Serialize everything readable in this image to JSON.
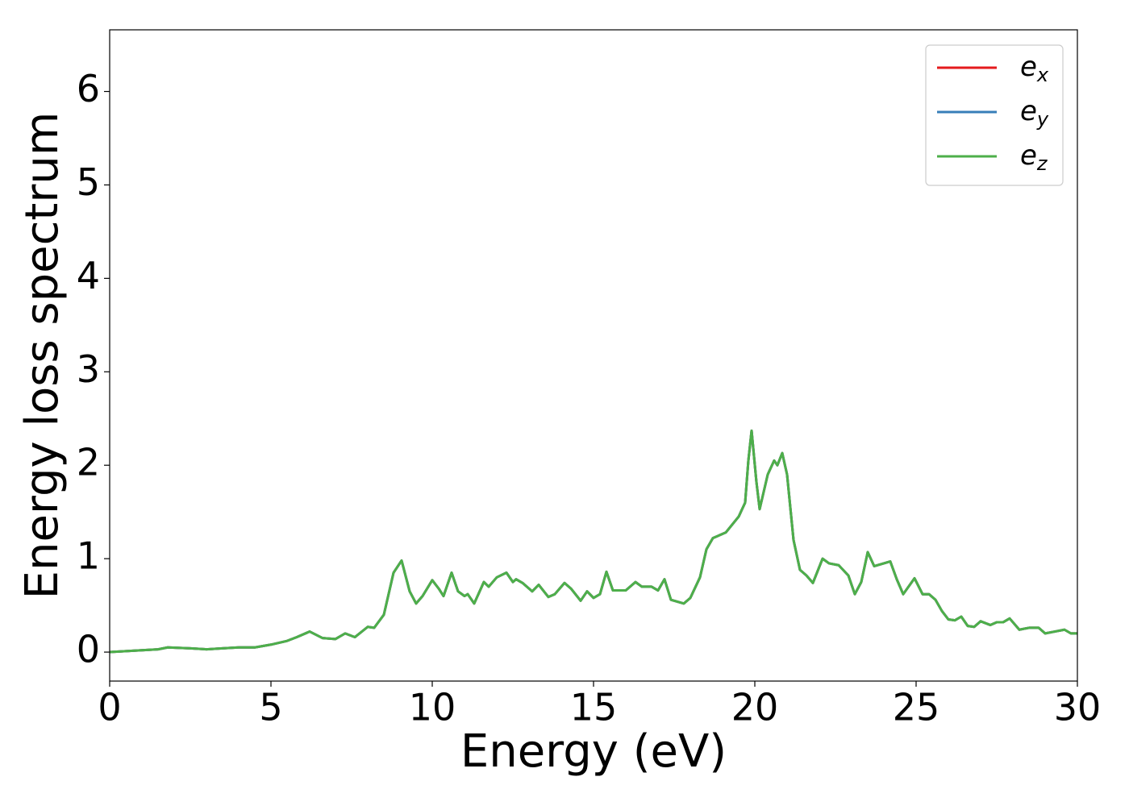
{
  "chart_data": {
    "type": "line",
    "x_label": "Energy (eV)",
    "y_label": "Energy loss spectrum",
    "xlim": [
      0,
      30
    ],
    "ylim": [
      -0.31,
      6.66
    ],
    "xticks": [
      0,
      5,
      10,
      15,
      20,
      25,
      30
    ],
    "yticks": [
      0,
      1,
      2,
      3,
      4,
      5,
      6
    ],
    "legend": "upper right",
    "x": [
      0,
      0.5,
      1,
      1.5,
      1.8,
      2.5,
      3,
      3.5,
      4,
      4.5,
      5,
      5.5,
      5.8,
      6.2,
      6.6,
      7,
      7.3,
      7.6,
      8,
      8.2,
      8.5,
      8.8,
      9.05,
      9.3,
      9.5,
      9.7,
      10,
      10.2,
      10.35,
      10.6,
      10.8,
      11,
      11.1,
      11.3,
      11.6,
      11.75,
      12,
      12.3,
      12.5,
      12.6,
      12.8,
      13.1,
      13.3,
      13.6,
      13.8,
      14.1,
      14.3,
      14.6,
      14.8,
      15,
      15.2,
      15.4,
      15.6,
      16,
      16.3,
      16.5,
      16.8,
      17,
      17.2,
      17.4,
      17.8,
      18,
      18.3,
      18.5,
      18.7,
      18.9,
      19.1,
      19.5,
      19.7,
      19.8,
      19.9,
      20.05,
      20.15,
      20.4,
      20.6,
      20.7,
      20.85,
      21,
      21.2,
      21.4,
      21.6,
      21.8,
      22.1,
      22.3,
      22.6,
      22.9,
      23.1,
      23.3,
      23.5,
      23.7,
      24,
      24.2,
      24.4,
      24.6,
      24.95,
      25.2,
      25.4,
      25.6,
      25.8,
      26,
      26.2,
      26.4,
      26.6,
      26.8,
      27,
      27.3,
      27.5,
      27.7,
      27.9,
      28.2,
      28.5,
      28.8,
      29,
      29.3,
      29.6,
      29.8,
      30
    ],
    "series": [
      {
        "name": "ex",
        "color": "#e41a1c",
        "values": [
          0,
          0.01,
          0.02,
          0.03,
          0.05,
          0.04,
          0.03,
          0.04,
          0.05,
          0.05,
          0.08,
          0.12,
          0.16,
          0.22,
          0.15,
          0.14,
          0.2,
          0.16,
          0.27,
          0.26,
          0.4,
          0.85,
          0.98,
          0.65,
          0.52,
          0.6,
          0.77,
          0.68,
          0.6,
          0.85,
          0.65,
          0.6,
          0.62,
          0.52,
          0.75,
          0.7,
          0.8,
          0.85,
          0.75,
          0.78,
          0.74,
          0.65,
          0.72,
          0.59,
          0.62,
          0.74,
          0.68,
          0.55,
          0.65,
          0.58,
          0.62,
          0.86,
          0.66,
          0.66,
          0.75,
          0.7,
          0.7,
          0.66,
          0.78,
          0.56,
          0.52,
          0.58,
          0.8,
          1.1,
          1.22,
          1.25,
          1.28,
          1.45,
          1.6,
          2.05,
          2.37,
          1.82,
          1.53,
          1.9,
          2.05,
          2.0,
          2.13,
          1.9,
          1.2,
          0.88,
          0.82,
          0.74,
          1.0,
          0.95,
          0.93,
          0.82,
          0.62,
          0.75,
          1.07,
          0.92,
          0.95,
          0.97,
          0.78,
          0.62,
          0.79,
          0.62,
          0.62,
          0.56,
          0.44,
          0.35,
          0.34,
          0.38,
          0.28,
          0.27,
          0.33,
          0.29,
          0.32,
          0.32,
          0.36,
          0.24,
          0.26,
          0.26,
          0.2,
          0.22,
          0.24,
          0.2,
          0.2
        ]
      },
      {
        "name": "ey",
        "color": "#377eb8",
        "values": [
          0,
          0.01,
          0.02,
          0.03,
          0.05,
          0.04,
          0.03,
          0.04,
          0.05,
          0.05,
          0.08,
          0.12,
          0.16,
          0.22,
          0.15,
          0.14,
          0.2,
          0.16,
          0.27,
          0.26,
          0.4,
          0.85,
          0.98,
          0.65,
          0.52,
          0.6,
          0.77,
          0.68,
          0.6,
          0.85,
          0.65,
          0.6,
          0.62,
          0.52,
          0.75,
          0.7,
          0.8,
          0.85,
          0.75,
          0.78,
          0.74,
          0.65,
          0.72,
          0.59,
          0.62,
          0.74,
          0.68,
          0.55,
          0.65,
          0.58,
          0.62,
          0.86,
          0.66,
          0.66,
          0.75,
          0.7,
          0.7,
          0.66,
          0.78,
          0.56,
          0.52,
          0.58,
          0.8,
          1.1,
          1.22,
          1.25,
          1.28,
          1.45,
          1.6,
          2.05,
          2.37,
          1.82,
          1.53,
          1.9,
          2.05,
          2.0,
          2.13,
          1.9,
          1.2,
          0.88,
          0.82,
          0.74,
          1.0,
          0.95,
          0.93,
          0.82,
          0.62,
          0.75,
          1.07,
          0.92,
          0.95,
          0.97,
          0.78,
          0.62,
          0.79,
          0.62,
          0.62,
          0.56,
          0.44,
          0.35,
          0.34,
          0.38,
          0.28,
          0.27,
          0.33,
          0.29,
          0.32,
          0.32,
          0.36,
          0.24,
          0.26,
          0.26,
          0.2,
          0.22,
          0.24,
          0.2,
          0.2
        ]
      },
      {
        "name": "ez",
        "color": "#4daf4a",
        "values": [
          0,
          0.01,
          0.02,
          0.03,
          0.05,
          0.04,
          0.03,
          0.04,
          0.05,
          0.05,
          0.08,
          0.12,
          0.16,
          0.22,
          0.15,
          0.14,
          0.2,
          0.16,
          0.27,
          0.26,
          0.4,
          0.85,
          0.98,
          0.65,
          0.52,
          0.6,
          0.77,
          0.68,
          0.6,
          0.85,
          0.65,
          0.6,
          0.62,
          0.52,
          0.75,
          0.7,
          0.8,
          0.85,
          0.75,
          0.78,
          0.74,
          0.65,
          0.72,
          0.59,
          0.62,
          0.74,
          0.68,
          0.55,
          0.65,
          0.58,
          0.62,
          0.86,
          0.66,
          0.66,
          0.75,
          0.7,
          0.7,
          0.66,
          0.78,
          0.56,
          0.52,
          0.58,
          0.8,
          1.1,
          1.22,
          1.25,
          1.28,
          1.45,
          1.6,
          2.05,
          2.37,
          1.82,
          1.53,
          1.9,
          2.05,
          2.0,
          2.13,
          1.9,
          1.2,
          0.88,
          0.82,
          0.74,
          1.0,
          0.95,
          0.93,
          0.82,
          0.62,
          0.75,
          1.07,
          0.92,
          0.95,
          0.97,
          0.78,
          0.62,
          0.79,
          0.62,
          0.62,
          0.56,
          0.44,
          0.35,
          0.34,
          0.38,
          0.28,
          0.27,
          0.33,
          0.29,
          0.32,
          0.32,
          0.36,
          0.24,
          0.26,
          0.26,
          0.2,
          0.22,
          0.24,
          0.2,
          0.2
        ]
      }
    ]
  }
}
